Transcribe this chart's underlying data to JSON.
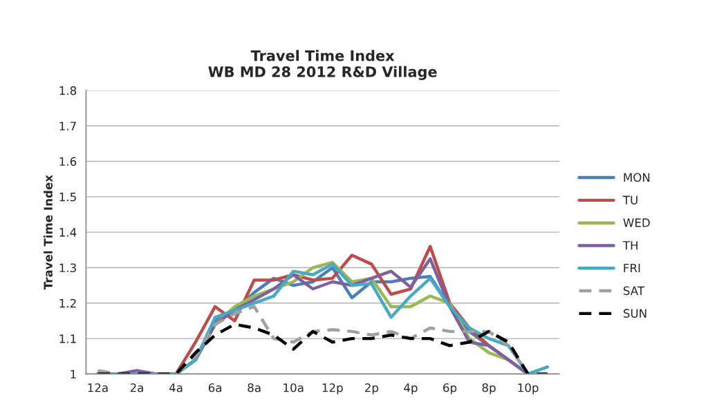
{
  "chart_data": {
    "type": "line",
    "title": "Travel Time Index\nWB MD 28 2012 R&D Village",
    "ylabel": "Travel Time Index",
    "categories": [
      "12a",
      null,
      "2a",
      null,
      "4a",
      null,
      "6a",
      null,
      "8a",
      null,
      "10a",
      null,
      "12p",
      null,
      "2p",
      null,
      "4p",
      null,
      "6p",
      null,
      "8p",
      null,
      "10p",
      null
    ],
    "ylim": [
      1,
      1.8
    ],
    "yticks": [
      {
        "value": 1,
        "label": "1"
      },
      1.1,
      1.2,
      1.3,
      1.4,
      1.5,
      1.6,
      1.7,
      1.8
    ],
    "grid": "y",
    "legend": "right",
    "marker": "none",
    "series": [
      {
        "name": "MON",
        "color": "#4a7ebb",
        "line_style": "solid",
        "values": [
          1.0,
          1.0,
          1.0,
          1.0,
          1.0,
          1.04,
          1.15,
          1.18,
          1.23,
          1.27,
          1.25,
          1.26,
          1.3,
          1.215,
          1.26,
          1.26,
          1.27,
          1.275,
          1.19,
          1.12,
          1.08,
          1.04,
          1.0,
          null
        ]
      },
      {
        "name": "TU",
        "color": "#be4b48",
        "line_style": "solid",
        "values": [
          null,
          null,
          null,
          1.0,
          1.0,
          1.09,
          1.19,
          1.15,
          1.265,
          1.265,
          1.28,
          1.265,
          1.27,
          1.335,
          1.31,
          1.225,
          1.24,
          1.36,
          1.2,
          1.13,
          1.08,
          1.04,
          1.0,
          null
        ]
      },
      {
        "name": "WED",
        "color": "#98b954",
        "line_style": "solid",
        "values": [
          null,
          null,
          null,
          null,
          1.0,
          1.04,
          1.14,
          1.19,
          1.22,
          1.24,
          1.26,
          1.3,
          1.315,
          1.26,
          1.27,
          1.19,
          1.19,
          1.22,
          1.2,
          1.1,
          1.06,
          1.04,
          1.0,
          null
        ]
      },
      {
        "name": "TH",
        "color": "#7d60a0",
        "line_style": "solid",
        "values": [
          1.0,
          1.0,
          1.01,
          1.0,
          1.0,
          1.04,
          1.14,
          1.18,
          1.21,
          1.24,
          1.28,
          1.24,
          1.26,
          1.25,
          1.27,
          1.29,
          1.245,
          1.325,
          1.19,
          1.09,
          1.08,
          1.04,
          1.0,
          null
        ]
      },
      {
        "name": "FRI",
        "color": "#46aac5",
        "line_style": "solid",
        "values": [
          1.0,
          1.0,
          1.0,
          1.0,
          1.0,
          1.04,
          1.16,
          1.18,
          1.2,
          1.22,
          1.29,
          1.28,
          1.31,
          1.25,
          1.255,
          1.16,
          1.22,
          1.27,
          1.19,
          1.13,
          1.1,
          1.08,
          1.0,
          1.02
        ]
      },
      {
        "name": "SAT",
        "color": "#a0a0a0",
        "line_style": "dashed",
        "values": [
          1.01,
          1.0,
          1.0,
          1.0,
          1.0,
          1.05,
          1.14,
          1.17,
          1.19,
          1.1,
          1.09,
          1.12,
          1.125,
          1.12,
          1.11,
          1.12,
          1.1,
          1.13,
          1.12,
          1.12,
          1.12,
          1.08,
          1.0,
          null
        ]
      },
      {
        "name": "SUN",
        "color": "#000000",
        "line_style": "dashed",
        "values": [
          1.0,
          1.0,
          1.0,
          1.0,
          1.0,
          1.06,
          1.11,
          1.14,
          1.13,
          1.11,
          1.07,
          1.12,
          1.09,
          1.1,
          1.1,
          1.11,
          1.1,
          1.1,
          1.08,
          1.09,
          1.12,
          1.09,
          1.0,
          1.0
        ]
      }
    ]
  }
}
